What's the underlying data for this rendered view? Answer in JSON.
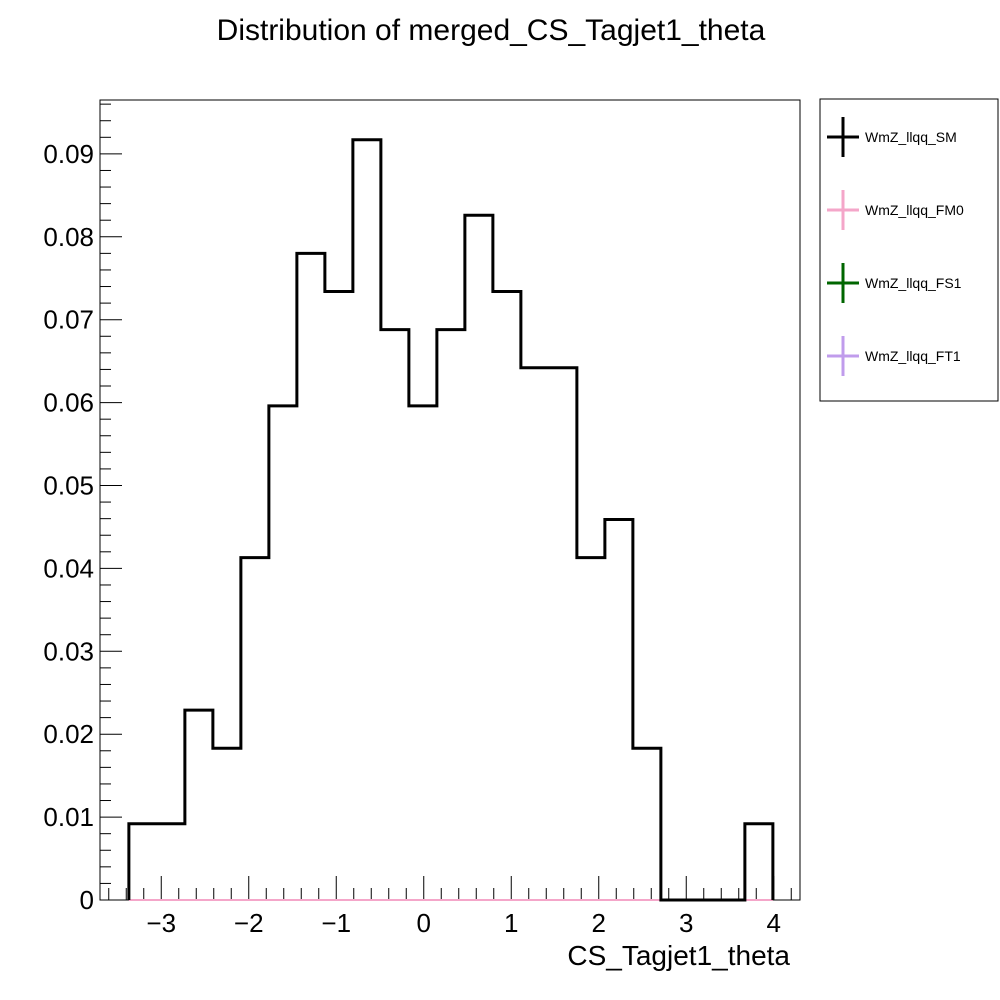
{
  "chart_data": {
    "type": "histogram",
    "title": "Distribution of merged_CS_Tagjet1_theta",
    "xlabel": "CS_Tagjet1_theta",
    "ylabel": "",
    "xlim": [
      -3.7,
      4.3
    ],
    "ylim": [
      0,
      0.0965
    ],
    "x_ticks": [
      -3,
      -2,
      -1,
      0,
      1,
      2,
      3,
      4
    ],
    "x_tick_labels": [
      "−3",
      "−2",
      "−1",
      "0",
      "1",
      "2",
      "3",
      "4"
    ],
    "y_ticks": [
      0,
      0.01,
      0.02,
      0.03,
      0.04,
      0.05,
      0.06,
      0.07,
      0.08,
      0.09
    ],
    "y_tick_labels": [
      "0",
      "0.01",
      "0.02",
      "0.03",
      "0.04",
      "0.05",
      "0.06",
      "0.07",
      "0.08",
      "0.09"
    ],
    "bin_edges": [
      -3.37,
      -3.05,
      -2.73,
      -2.41,
      -2.09,
      -1.77,
      -1.45,
      -1.13,
      -0.81,
      -0.49,
      -0.17,
      0.15,
      0.47,
      0.79,
      1.11,
      1.43,
      1.75,
      2.07,
      2.39,
      2.71,
      3.03,
      3.35,
      3.67,
      3.99
    ],
    "legend_position": "right",
    "series": [
      {
        "name": "WmZ_llqq_SM",
        "color": "#000000",
        "values": [
          0.0092,
          0.0092,
          0.0229,
          0.0183,
          0.0413,
          0.0596,
          0.078,
          0.0734,
          0.0917,
          0.0688,
          0.0596,
          0.0688,
          0.0826,
          0.0734,
          0.0642,
          0.0642,
          0.0413,
          0.0459,
          0.0183,
          0,
          0,
          0,
          0.0092
        ]
      },
      {
        "name": "WmZ_llqq_FM0",
        "color": "#f4a6c9",
        "values": [
          0,
          0,
          0,
          0,
          0,
          0,
          0,
          0,
          0,
          0,
          0,
          0,
          0,
          0,
          0,
          0,
          0,
          0,
          0,
          0,
          0,
          0,
          0
        ]
      },
      {
        "name": "WmZ_llqq_FS1",
        "color": "#006600",
        "values": [
          0,
          0,
          0,
          0,
          0,
          0,
          0,
          0,
          0,
          0,
          0,
          0,
          0,
          0,
          0,
          0,
          0,
          0,
          0,
          0,
          0,
          0,
          0
        ]
      },
      {
        "name": "WmZ_llqq_FT1",
        "color": "#c09cec",
        "values": [
          0,
          0,
          0,
          0,
          0,
          0,
          0,
          0,
          0,
          0,
          0,
          0,
          0,
          0,
          0,
          0,
          0,
          0,
          0,
          0,
          0,
          0,
          0
        ]
      }
    ]
  }
}
